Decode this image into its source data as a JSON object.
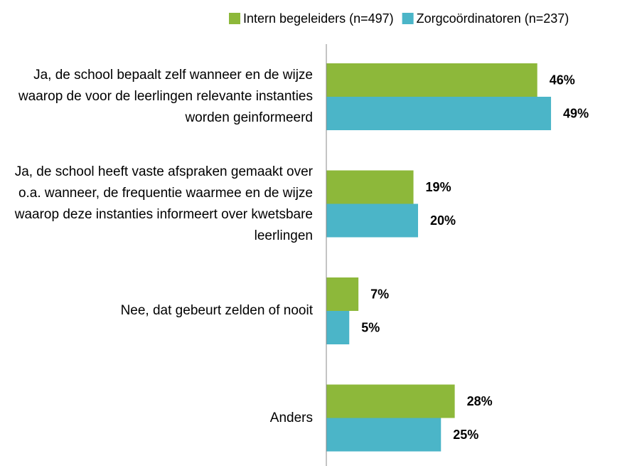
{
  "chart_data": {
    "type": "hbar",
    "categories": [
      "Ja, de school bepaalt zelf wanneer en de wijze waarop de voor de leerlingen relevante instanties worden geinformeerd",
      "Ja, de school heeft vaste afspraken gemaakt over o.a. wanneer, de frequentie waarmee en de wijze waarop deze instanties informeert over kwetsbare leerlingen",
      "Nee, dat gebeurt zelden of nooit",
      "Anders"
    ],
    "series": [
      {
        "name": "Intern begeleiders (n=497)",
        "color": "#8db83a",
        "values": [
          46,
          19,
          7,
          28
        ],
        "value_labels": [
          "46%",
          "19%",
          "7%",
          "28%"
        ]
      },
      {
        "name": "Zorgcoördinatoren (n=237)",
        "color": "#4bb5c8",
        "values": [
          49,
          20,
          5,
          25
        ],
        "value_labels": [
          "49%",
          "20%",
          "5%",
          "25%"
        ]
      }
    ],
    "xlim": [
      0,
      60
    ],
    "legend": "top-right"
  }
}
